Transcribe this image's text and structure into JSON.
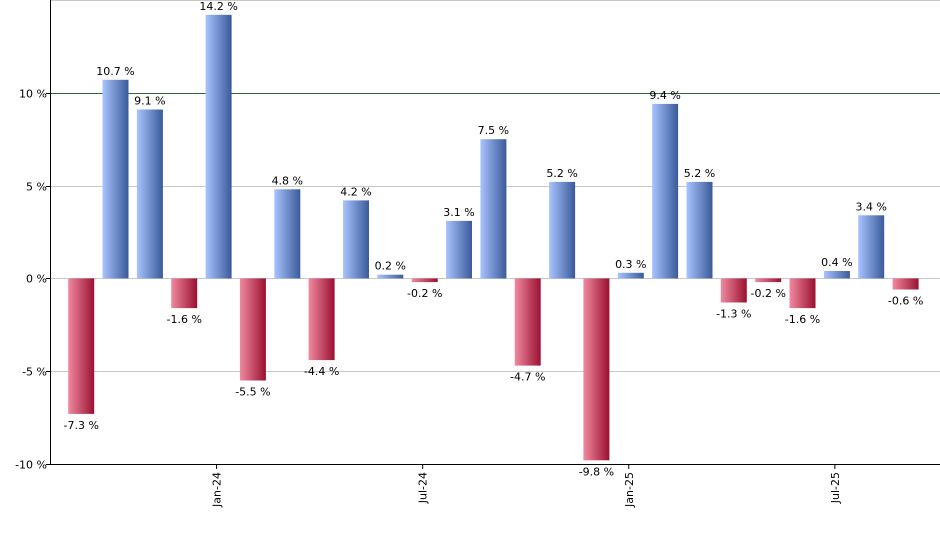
{
  "chart_data": {
    "type": "bar",
    "title": "",
    "xlabel": "",
    "ylabel": "",
    "ylim": [
      -10,
      15
    ],
    "y_ticks": [
      10,
      5,
      0,
      -5,
      -10
    ],
    "y_tick_labels": [
      "10 %",
      "5 %",
      "0 %",
      "-5 %",
      "-10 %"
    ],
    "reference_line": 10,
    "grid": true,
    "legend": "none",
    "x_ticks": [
      {
        "label": "Jan-24",
        "index": 4
      },
      {
        "label": "Jul-24",
        "index": 10
      },
      {
        "label": "Jan-25",
        "index": 16
      },
      {
        "label": "Jul-25",
        "index": 22
      }
    ],
    "values": [
      -7.3,
      10.7,
      9.1,
      -1.6,
      14.2,
      -5.5,
      4.8,
      -4.4,
      4.2,
      0.2,
      -0.2,
      3.1,
      7.5,
      -4.7,
      5.2,
      -9.8,
      0.3,
      9.4,
      5.2,
      -1.3,
      -0.2,
      -1.6,
      0.4,
      3.4,
      -0.6
    ],
    "labels": [
      "-7.3 %",
      "10.7 %",
      "9.1 %",
      "-1.6 %",
      "14.2 %",
      "-5.5 %",
      "4.8 %",
      "-4.4 %",
      "4.2 %",
      "0.2 %",
      "-0.2 %",
      "3.1 %",
      "7.5 %",
      "-4.7 %",
      "5.2 %",
      "-9.8 %",
      "0.3 %",
      "9.4 %",
      "5.2 %",
      "-1.3 %",
      "-0.2 %",
      "-1.6 %",
      "0.4 %",
      "3.4 %",
      "-0.6 %"
    ],
    "colors": {
      "positive_light": "#a9c4ff",
      "positive_dark": "#3a5a9a",
      "negative_light": "#f08aa0",
      "negative_dark": "#9a1030",
      "grid": "#c8c8c8",
      "reference": "#2e6b2e",
      "axis": "#000000"
    }
  }
}
